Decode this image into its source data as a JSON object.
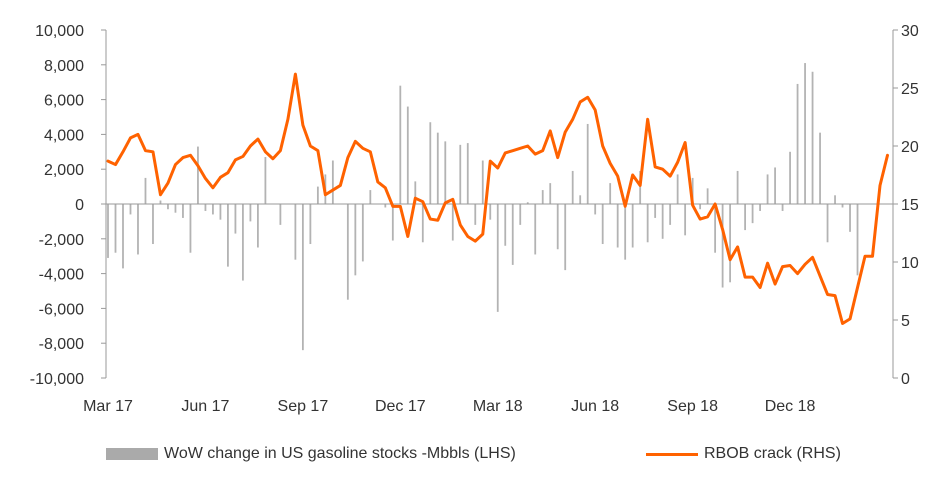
{
  "colors": {
    "bar": "#b3b3b3",
    "line": "#ff6200",
    "axis": "#9a9a9a",
    "text": "#333333"
  },
  "chart_data": {
    "type": "bar+line",
    "title": "",
    "x_tick_labels": [
      "Mar 17",
      "Jun 17",
      "Sep 17",
      "Dec 17",
      "Mar 18",
      "Jun 18",
      "Sep 18",
      "Dec 18"
    ],
    "x_tick_weeks": [
      0,
      13,
      26,
      39,
      52,
      65,
      78,
      91
    ],
    "left_axis": {
      "ylim": [
        -10000,
        10000
      ],
      "ticks": [
        -10000,
        -8000,
        -6000,
        -4000,
        -2000,
        0,
        2000,
        4000,
        6000,
        8000,
        10000
      ],
      "tick_labels": [
        "-10,000",
        "-8,000",
        "-6,000",
        "-4,000",
        "-2,000",
        "0",
        "2,000",
        "4,000",
        "6,000",
        "8,000",
        "10,000"
      ]
    },
    "right_axis": {
      "ylim": [
        0,
        30
      ],
      "ticks": [
        0,
        5,
        10,
        15,
        20,
        25,
        30
      ],
      "tick_labels": [
        "0",
        "5",
        "10",
        "15",
        "20",
        "25",
        "30"
      ]
    },
    "series": [
      {
        "name": "WoW change in US gasoline stocks -Mbbls (LHS)",
        "type": "bar",
        "axis": "left",
        "values": [
          -3100,
          -2800,
          -3700,
          -600,
          -2900,
          1500,
          -2300,
          200,
          -300,
          -500,
          -800,
          -2800,
          3300,
          -400,
          -600,
          -900,
          -3600,
          -1700,
          -4400,
          -1000,
          -2500,
          2700,
          0,
          -1200,
          0,
          -3200,
          -8400,
          -2300,
          1000,
          1700,
          2500,
          0,
          -5500,
          -4100,
          -3300,
          800,
          0,
          -200,
          -2100,
          6800,
          5600,
          1300,
          -2200,
          4700,
          4100,
          3600,
          -2100,
          3400,
          3500,
          -1200,
          2500,
          -900,
          -6200,
          -2400,
          -3500,
          -1200,
          100,
          -2900,
          800,
          1200,
          -2600,
          -3800,
          1900,
          500,
          4600,
          -600,
          -2300,
          1200,
          -2500,
          -3200,
          -2500,
          1900,
          -2200,
          -800,
          -2000,
          -1200,
          1700,
          -1800,
          1500,
          -300,
          900,
          -2800,
          -4800,
          -4500,
          1900,
          -1500,
          -1100,
          -400,
          1700,
          2100,
          -400,
          3000,
          6900,
          8100,
          7600,
          4100,
          -2200,
          500,
          -200,
          -1600,
          -4100
        ],
        "x_week_offset": 0
      },
      {
        "name": "RBOB crack (RHS)",
        "type": "line",
        "axis": "right",
        "values": [
          18.7,
          18.4,
          19.5,
          20.7,
          21.0,
          19.6,
          19.5,
          15.8,
          16.8,
          18.4,
          19.0,
          19.2,
          18.3,
          17.2,
          16.4,
          17.3,
          17.7,
          18.8,
          19.1,
          20.0,
          20.6,
          19.5,
          18.9,
          19.6,
          22.3,
          26.2,
          21.8,
          20.0,
          19.6,
          15.8,
          16.2,
          16.6,
          19.0,
          20.4,
          19.8,
          19.5,
          16.9,
          16.4,
          14.8,
          14.8,
          12.2,
          15.5,
          15.2,
          13.7,
          13.6,
          15.1,
          15.4,
          13.2,
          12.2,
          11.8,
          12.4,
          18.7,
          18.1,
          19.4,
          19.6,
          19.8,
          20.0,
          19.3,
          19.6,
          21.3,
          19.0,
          21.2,
          22.3,
          23.8,
          24.2,
          23.1,
          20.0,
          18.5,
          17.4,
          14.8,
          17.5,
          16.6,
          22.3,
          18.2,
          18.0,
          17.4,
          18.6,
          20.3,
          14.9,
          13.7,
          13.9,
          15.0,
          12.8,
          10.2,
          11.3,
          8.7,
          8.7,
          7.8,
          9.9,
          8.1,
          9.6,
          9.7,
          9.0,
          9.8,
          10.4,
          8.8,
          7.2,
          7.1,
          4.7,
          5.1,
          7.8,
          10.5,
          10.5,
          16.6,
          19.2
        ],
        "x_week_offset": 0
      }
    ],
    "grid": false,
    "legend_placement": "bottom"
  },
  "legend": {
    "bar_label": "WoW change in US gasoline stocks -Mbbls (LHS)",
    "line_label": "RBOB crack (RHS)"
  }
}
